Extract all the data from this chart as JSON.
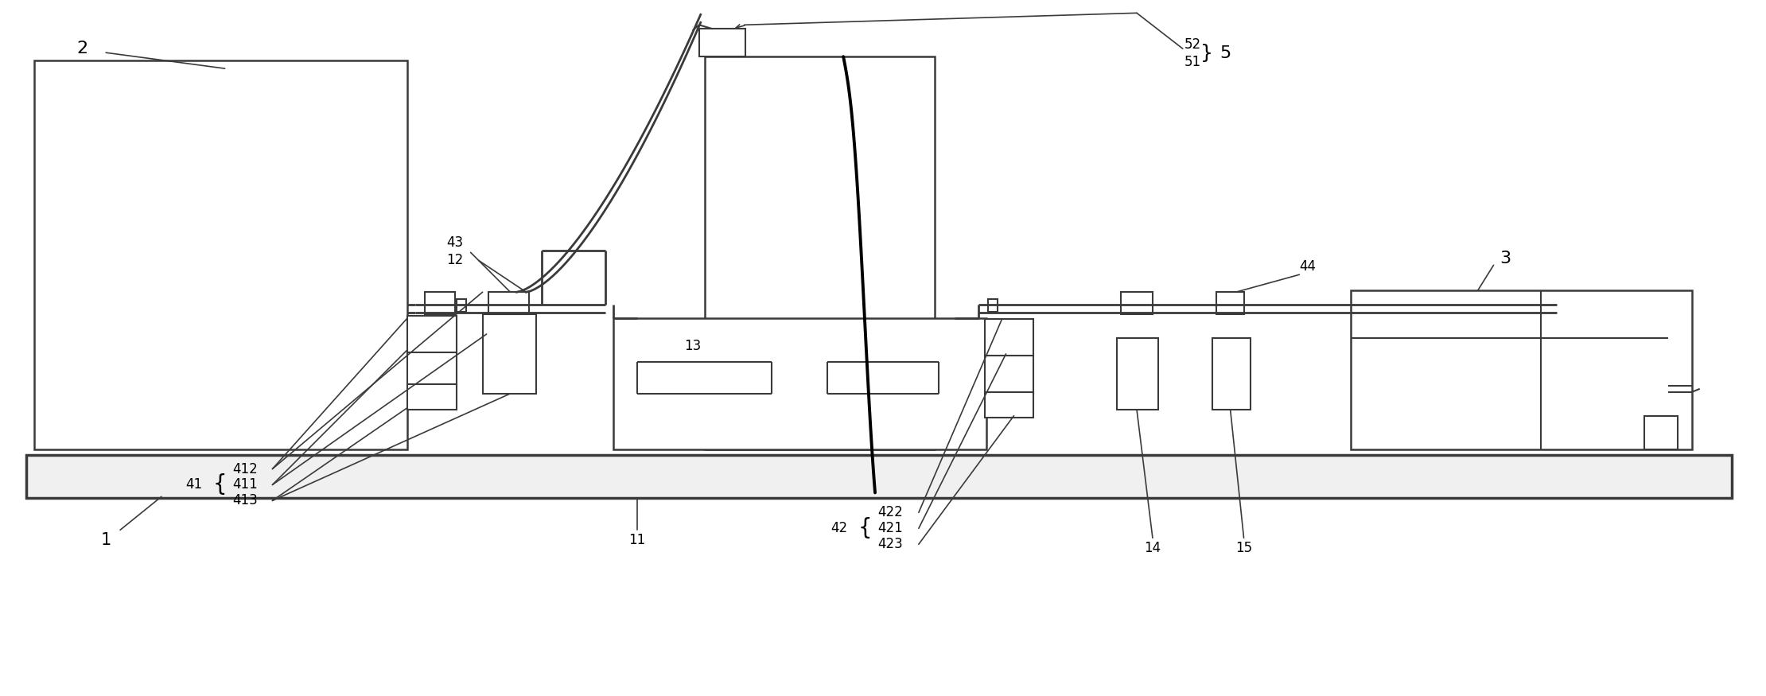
{
  "bg_color": "#ffffff",
  "lc": "#3a3a3a",
  "lw": 1.5,
  "fig_width": 22.2,
  "fig_height": 8.75,
  "dpi": 100
}
